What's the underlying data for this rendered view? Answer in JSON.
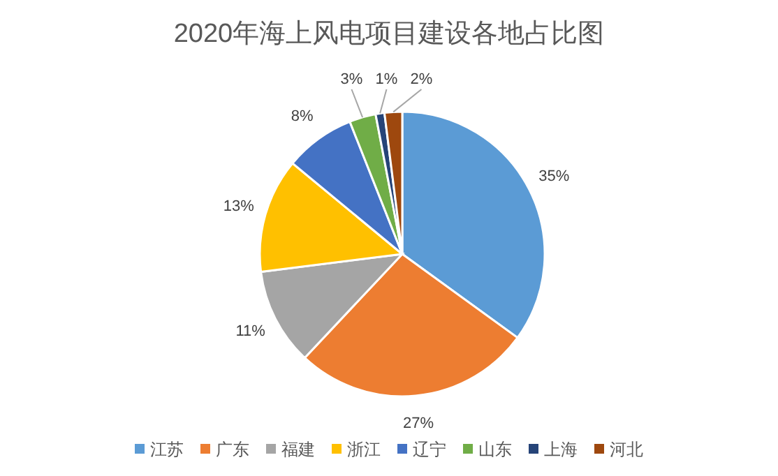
{
  "chart_data": {
    "type": "pie",
    "title": "2020年海上风电项目建设各地占比图",
    "categories": [
      "江苏",
      "广东",
      "福建",
      "浙江",
      "辽宁",
      "山东",
      "上海",
      "河北"
    ],
    "values": [
      35,
      27,
      11,
      13,
      8,
      3,
      1,
      2
    ],
    "value_labels": [
      "35%",
      "27%",
      "11%",
      "13%",
      "8%",
      "3%",
      "1%",
      "2%"
    ],
    "colors": [
      "#5b9bd5",
      "#ed7d31",
      "#a5a5a5",
      "#ffc000",
      "#4472c4",
      "#70ad47",
      "#264478",
      "#9e480e"
    ],
    "legend": "bottom"
  }
}
